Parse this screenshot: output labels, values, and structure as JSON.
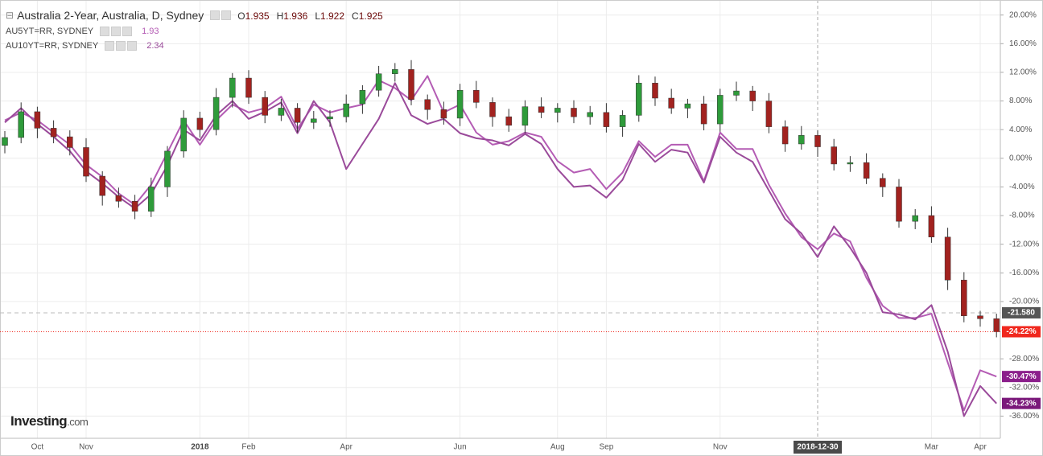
{
  "chart_data": {
    "type": "candlestick",
    "title": "Australia 2-Year, Australia, D, Sydney",
    "ohlc_legend": [
      {
        "label": "O",
        "value": 1.935
      },
      {
        "label": "H",
        "value": 1.936
      },
      {
        "label": "L",
        "value": 1.922
      },
      {
        "label": "C",
        "value": 1.925
      }
    ],
    "categories": [
      null,
      null,
      "Oct",
      null,
      null,
      "Nov",
      null,
      null,
      null,
      null,
      null,
      null,
      "2018",
      null,
      null,
      "Feb",
      null,
      null,
      null,
      null,
      null,
      "Apr",
      null,
      null,
      null,
      null,
      null,
      null,
      "Jun",
      null,
      null,
      null,
      null,
      null,
      "Aug",
      null,
      null,
      "Sep",
      null,
      null,
      null,
      null,
      null,
      null,
      "Nov",
      null,
      null,
      null,
      null,
      null,
      "2018-12-30",
      null,
      null,
      null,
      null,
      null,
      null,
      "Mar",
      null,
      null,
      "Apr",
      null
    ],
    "crosshair_index": 50,
    "ylim": [
      -39.1,
      22.1
    ],
    "yticks": [
      {
        "value": 20,
        "label": "20.00%"
      },
      {
        "value": 16,
        "label": "16.00%"
      },
      {
        "value": 12,
        "label": "12.00%"
      },
      {
        "value": 8,
        "label": "8.00%"
      },
      {
        "value": 4,
        "label": "4.00%"
      },
      {
        "value": 0,
        "label": "0.00%"
      },
      {
        "value": -4,
        "label": "-4.00%"
      },
      {
        "value": -8,
        "label": "-8.00%"
      },
      {
        "value": -12,
        "label": "-12.00%"
      },
      {
        "value": -16,
        "label": "-16.00%"
      },
      {
        "value": -20,
        "label": "-20.00%"
      },
      {
        "value": -28,
        "label": "-28.00%"
      },
      {
        "value": -32,
        "label": "-32.00%"
      },
      {
        "value": -36,
        "label": "-36.00%"
      }
    ],
    "grid": true,
    "hline": {
      "value": -21.58,
      "label": "-21.580",
      "color": "#555555"
    },
    "series": [
      {
        "name": "Australia 2-Year, Australia, D, Sydney",
        "type": "candlestick",
        "up_color": "#2e9b3a",
        "down_color": "#a2221f",
        "open": [
          1.8,
          2.9,
          6.5,
          4.2,
          3.0,
          1.5,
          -2.5,
          -5.2,
          -6.0,
          -7.4,
          -4.0,
          1.0,
          5.6,
          4.0,
          8.5,
          11.2,
          8.5,
          6.0,
          7.0,
          5.0,
          5.5,
          5.8,
          7.6,
          9.5,
          11.8,
          12.4,
          8.2,
          6.8,
          5.6,
          9.5,
          7.8,
          5.8,
          4.6,
          7.2,
          6.4,
          7.0,
          5.8,
          6.4,
          4.4,
          6.0,
          10.5,
          8.4,
          7.0,
          7.6,
          4.8,
          8.8,
          9.4,
          8.0,
          4.4,
          2.0,
          3.2,
          1.6,
          -0.8,
          -0.6,
          -2.8,
          -4.0,
          -8.8,
          -8.0,
          -11.0,
          -17.0,
          -22.0,
          -22.4
        ],
        "high": [
          3.8,
          7.8,
          7.2,
          5.3,
          3.9,
          2.8,
          -1.8,
          -4.1,
          -5.1,
          -2.7,
          1.7,
          6.7,
          6.5,
          9.8,
          11.9,
          12.3,
          9.4,
          8.3,
          7.7,
          6.6,
          6.7,
          8.9,
          10.2,
          12.9,
          13.3,
          13.7,
          8.9,
          7.9,
          10.4,
          10.8,
          8.5,
          6.9,
          8.1,
          8.5,
          7.7,
          8.1,
          7.3,
          7.7,
          6.7,
          11.6,
          11.4,
          9.7,
          8.3,
          8.7,
          9.7,
          10.7,
          10.1,
          9.1,
          5.3,
          4.5,
          3.9,
          2.7,
          0.3,
          0.7,
          -2.1,
          -2.9,
          -7.1,
          -6.7,
          -9.7,
          -15.9,
          -21.3,
          -21.7
        ],
        "low": [
          0.7,
          2.1,
          2.8,
          2.1,
          0.4,
          -3.3,
          -6.6,
          -6.9,
          -8.5,
          -8.2,
          -5.4,
          0.1,
          2.9,
          3.2,
          7.1,
          7.6,
          4.9,
          5.2,
          3.6,
          4.1,
          4.4,
          5.0,
          6.2,
          8.6,
          10.7,
          7.4,
          5.4,
          4.7,
          4.5,
          7.0,
          4.4,
          3.7,
          3.5,
          5.6,
          5.0,
          4.9,
          4.7,
          3.6,
          3.0,
          5.1,
          7.3,
          6.2,
          5.6,
          3.9,
          3.7,
          8.0,
          6.6,
          3.5,
          0.9,
          1.2,
          0.2,
          -1.7,
          -1.9,
          -3.6,
          -5.4,
          -9.7,
          -9.9,
          -11.8,
          -18.4,
          -22.9,
          -23.5,
          -25.0
        ],
        "close": [
          2.9,
          6.5,
          4.2,
          3.0,
          1.5,
          -2.5,
          -5.2,
          -6.0,
          -7.4,
          -4.0,
          1.0,
          5.6,
          4.0,
          8.5,
          11.2,
          8.5,
          6.0,
          7.0,
          5.0,
          5.5,
          5.8,
          7.6,
          9.5,
          11.8,
          12.4,
          8.2,
          6.8,
          5.6,
          9.5,
          7.8,
          5.8,
          4.6,
          7.2,
          6.4,
          7.0,
          5.8,
          6.4,
          4.4,
          6.0,
          10.5,
          8.4,
          7.0,
          7.6,
          4.8,
          8.8,
          9.4,
          8.0,
          4.4,
          2.0,
          3.2,
          1.6,
          -0.8,
          -0.6,
          -2.8,
          -4.0,
          -8.8,
          -8.0,
          -11.0,
          -17.0,
          -22.0,
          -22.4,
          -24.22
        ],
        "last": {
          "value": -24.22,
          "label": "-24.22%",
          "color": "#f0281e"
        }
      },
      {
        "name": "AU5YT=RR, SYDNEY",
        "type": "line",
        "color": "#b45cb4",
        "legend_value": 1.93,
        "values": [
          5.3,
          6.4,
          5.3,
          3.6,
          1.9,
          -0.9,
          -2.6,
          -4.9,
          -6.5,
          -3.7,
          0.8,
          5.3,
          1.9,
          5.3,
          7.5,
          6.4,
          7.0,
          8.6,
          4.1,
          7.5,
          6.4,
          7.0,
          7.5,
          10.9,
          9.8,
          8.1,
          11.5,
          6.4,
          7.5,
          3.6,
          1.9,
          2.4,
          3.6,
          3.0,
          -0.4,
          -2.0,
          -1.5,
          -4.3,
          -2.0,
          2.4,
          0.2,
          1.9,
          1.9,
          -3.2,
          3.6,
          1.3,
          1.3,
          -3.7,
          -7.7,
          -11.0,
          -12.7,
          -10.5,
          -11.6,
          -16.7,
          -20.6,
          -22.3,
          -22.3,
          -21.7,
          -28.5,
          -35.2,
          -29.6,
          -30.47
        ],
        "last": {
          "value": -30.47,
          "label": "-30.47%",
          "color": "#8b1f8b"
        }
      },
      {
        "name": "AU10YT=RR, SYDNEY",
        "type": "line",
        "color": "#9a4a9a",
        "legend_value": 2.34,
        "values": [
          5.0,
          7.0,
          4.8,
          3.0,
          1.0,
          -1.8,
          -3.5,
          -5.4,
          -7.0,
          -5.0,
          -1.0,
          4.0,
          2.5,
          6.0,
          8.0,
          5.5,
          6.5,
          7.8,
          3.5,
          8.0,
          5.0,
          -1.5,
          2.0,
          5.5,
          10.5,
          6.0,
          4.8,
          5.5,
          3.5,
          2.8,
          2.5,
          1.8,
          3.4,
          2.0,
          -1.5,
          -4.0,
          -3.8,
          -5.5,
          -3.0,
          2.0,
          -0.5,
          1.2,
          0.8,
          -3.4,
          3.0,
          0.8,
          -0.5,
          -4.5,
          -8.5,
          -10.5,
          -13.8,
          -9.5,
          -12.5,
          -16.0,
          -21.5,
          -21.8,
          -22.5,
          -20.5,
          -27.0,
          -36.0,
          -31.8,
          -34.23
        ],
        "last": {
          "value": -34.23,
          "label": "-34.23%",
          "color": "#7a187a"
        }
      }
    ],
    "brand": {
      "name": "Investing",
      "suffix": ".com"
    }
  }
}
